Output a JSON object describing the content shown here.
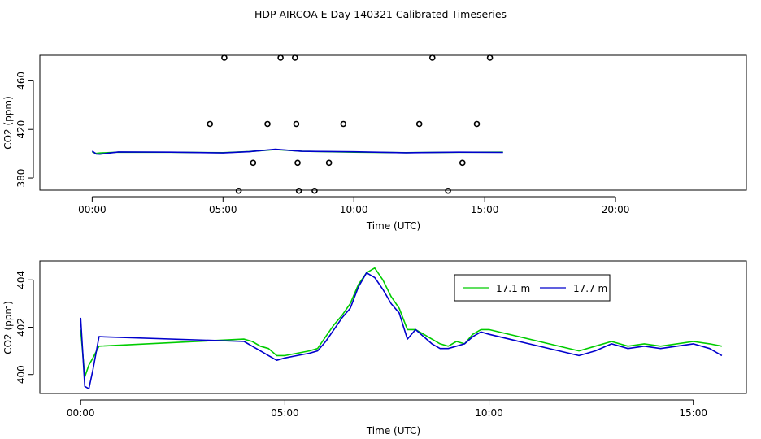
{
  "title": "HDP AIRCOA E  Day 140321  Calibrated Timeseries",
  "colors": {
    "green": "#00cc00",
    "blue": "#0000cc",
    "axis": "#000000"
  },
  "chart_data": [
    {
      "type": "scatter",
      "xlabel": "Time (UTC)",
      "ylabel": "CO2 (ppm)",
      "xlim": [
        -2,
        25
      ],
      "ylim": [
        370,
        481
      ],
      "x_ticks": [
        0,
        5,
        10,
        15,
        20
      ],
      "x_tick_labels": [
        "00:00",
        "05:00",
        "10:00",
        "15:00",
        "20:00"
      ],
      "y_ticks": [
        380,
        420,
        460
      ],
      "y_tick_labels": [
        "380",
        "420",
        "460"
      ],
      "grid": false,
      "points": [
        [
          5.05,
          479
        ],
        [
          7.2,
          479
        ],
        [
          7.75,
          479
        ],
        [
          13.0,
          479
        ],
        [
          15.2,
          479
        ],
        [
          4.5,
          424.5
        ],
        [
          6.7,
          424.5
        ],
        [
          7.8,
          424.5
        ],
        [
          9.6,
          424.5
        ],
        [
          12.5,
          424.5
        ],
        [
          14.7,
          424.5
        ],
        [
          6.15,
          392.5
        ],
        [
          7.85,
          392.5
        ],
        [
          9.05,
          392.5
        ],
        [
          14.15,
          392.5
        ],
        [
          5.6,
          369.5
        ],
        [
          7.9,
          369.5
        ],
        [
          8.5,
          369.5
        ],
        [
          13.6,
          369.5
        ]
      ],
      "lines": [
        {
          "color": "#00cc00",
          "x": [
            0,
            0.15,
            0.3,
            1,
            3,
            5,
            6,
            7,
            8,
            10,
            12,
            14,
            15.7
          ],
          "y": [
            401.5,
            400.3,
            400.6,
            401.3,
            401.2,
            400.9,
            401.8,
            403.5,
            402.1,
            401.3,
            400.9,
            401.2,
            401.3
          ]
        },
        {
          "color": "#0000cc",
          "x": [
            0,
            0.15,
            0.3,
            1,
            3,
            5,
            6,
            7,
            8,
            10,
            12,
            14,
            15.7
          ],
          "y": [
            402.2,
            399.8,
            399.6,
            401.5,
            401.3,
            400.7,
            401.7,
            403.7,
            402.0,
            401.6,
            400.8,
            401.3,
            401.1
          ]
        }
      ]
    },
    {
      "type": "line",
      "xlabel": "Time (UTC)",
      "ylabel": "CO2 (ppm)",
      "xlim": [
        -1,
        16.3
      ],
      "ylim": [
        399.2,
        404.8
      ],
      "x_ticks": [
        0,
        5,
        10,
        15
      ],
      "x_tick_labels": [
        "00:00",
        "05:00",
        "10:00",
        "15:00"
      ],
      "y_ticks": [
        400,
        402,
        404
      ],
      "y_tick_labels": [
        "400",
        "402",
        "404"
      ],
      "grid": false,
      "legend": {
        "placement": "top-right",
        "entries": [
          "17.1 m",
          "17.7 m"
        ]
      },
      "series": [
        {
          "name": "17.1 m",
          "color": "#00cc00",
          "x": [
            0.0,
            0.1,
            0.2,
            0.3,
            0.45,
            4.0,
            4.2,
            4.4,
            4.6,
            4.8,
            5.0,
            5.3,
            5.6,
            5.8,
            6.0,
            6.2,
            6.4,
            6.6,
            6.8,
            7.0,
            7.2,
            7.4,
            7.6,
            7.8,
            8.0,
            8.2,
            8.4,
            8.6,
            8.8,
            9.0,
            9.2,
            9.4,
            9.6,
            9.8,
            10.0,
            12.2,
            12.6,
            13.0,
            13.4,
            13.8,
            14.2,
            14.6,
            15.0,
            15.4,
            15.7
          ],
          "y": [
            401.9,
            399.9,
            400.4,
            400.7,
            401.2,
            401.5,
            401.4,
            401.2,
            401.1,
            400.8,
            400.8,
            400.9,
            401.0,
            401.1,
            401.6,
            402.1,
            402.5,
            403.0,
            403.8,
            404.3,
            404.5,
            404.0,
            403.3,
            402.8,
            401.9,
            401.9,
            401.7,
            401.5,
            401.3,
            401.2,
            401.4,
            401.3,
            401.7,
            401.9,
            401.9,
            401.0,
            401.2,
            401.4,
            401.2,
            401.3,
            401.2,
            401.3,
            401.4,
            401.3,
            401.2
          ]
        },
        {
          "name": "17.7 m",
          "color": "#0000cc",
          "x": [
            0.0,
            0.1,
            0.2,
            0.3,
            0.45,
            4.0,
            4.2,
            4.4,
            4.6,
            4.8,
            5.0,
            5.3,
            5.6,
            5.8,
            6.0,
            6.2,
            6.4,
            6.6,
            6.8,
            7.0,
            7.2,
            7.4,
            7.6,
            7.8,
            8.0,
            8.2,
            8.4,
            8.6,
            8.8,
            9.0,
            9.2,
            9.4,
            9.6,
            9.8,
            10.0,
            12.2,
            12.6,
            13.0,
            13.4,
            13.8,
            14.2,
            14.6,
            15.0,
            15.4,
            15.7
          ],
          "y": [
            402.4,
            399.5,
            399.4,
            400.2,
            401.6,
            401.4,
            401.2,
            401.0,
            400.8,
            400.6,
            400.7,
            400.8,
            400.9,
            401.0,
            401.4,
            401.9,
            402.4,
            402.8,
            403.7,
            404.3,
            404.1,
            403.6,
            403.0,
            402.6,
            401.5,
            401.9,
            401.6,
            401.3,
            401.1,
            401.1,
            401.2,
            401.3,
            401.6,
            401.8,
            401.7,
            400.8,
            401.0,
            401.3,
            401.1,
            401.2,
            401.1,
            401.2,
            401.3,
            401.1,
            400.8
          ]
        }
      ]
    }
  ]
}
